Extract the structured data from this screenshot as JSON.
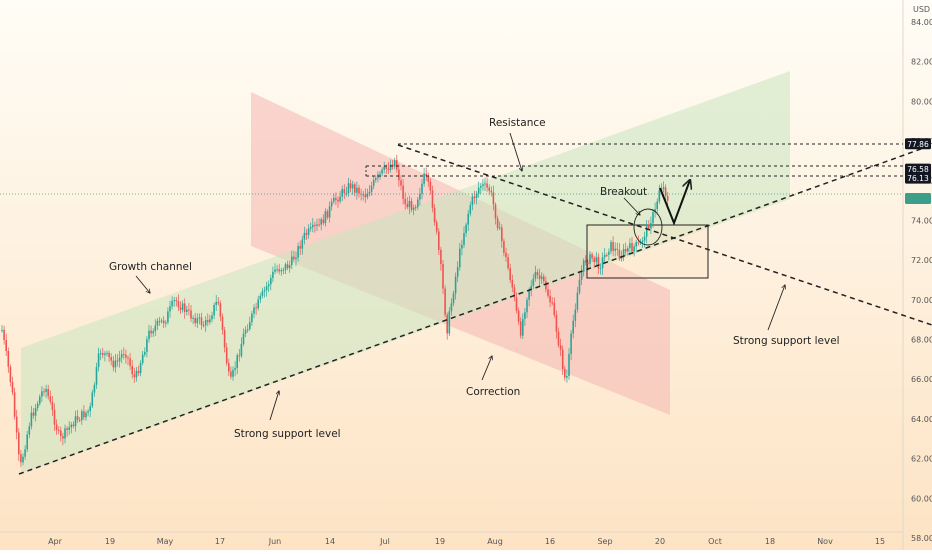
{
  "chart_data": {
    "type": "candlestick",
    "currency_label": "USD",
    "y_ticks": [
      "84.00",
      "82.00",
      "80.00",
      "78.00",
      "76.00",
      "74.00",
      "72.00",
      "70.00",
      "68.00",
      "66.00",
      "64.00",
      "62.00",
      "60.00",
      "58.00"
    ],
    "x_ticks": [
      "Apr",
      "19",
      "May",
      "17",
      "Jun",
      "14",
      "Jul",
      "19",
      "Aug",
      "16",
      "Sep",
      "20",
      "Oct",
      "18",
      "Nov",
      "15"
    ],
    "ylim": [
      57.4,
      85.1
    ],
    "price_badges": [
      {
        "value": "77.86",
        "price": 77.86,
        "fill": "#131722",
        "text_color": "#ffffff"
      },
      {
        "value": "76.58",
        "price": 76.58,
        "fill": "#131722",
        "text_color": "#ffffff"
      },
      {
        "value": "76.13",
        "price": 76.13,
        "fill": "#131722",
        "text_color": "#ffffff"
      },
      {
        "value": "",
        "price": 75.1,
        "fill": "#3c9e8a",
        "text_color": "#ffffff"
      }
    ],
    "annotations": [
      "Resistance",
      "Breakout",
      "Growth channel",
      "Strong support level",
      "Correction",
      "Strong support level"
    ],
    "colors": {
      "up": "#26a69a",
      "down": "#ef5350",
      "growth_zone": "#c8e6c0",
      "correction_zone": "#f4b7b2",
      "bg_top": "#fffdf6",
      "bg_bottom": "#fde3c4"
    }
  }
}
